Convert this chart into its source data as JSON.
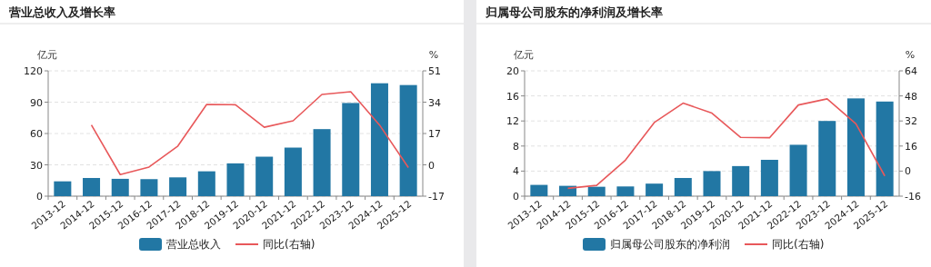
{
  "chart_data": [
    {
      "type": "bar",
      "title": "营业总收入及增长率",
      "ylabel": "亿元",
      "y2label": "%",
      "categories": [
        "2013-12",
        "2014-12",
        "2015-12",
        "2016-12",
        "2017-12",
        "2018-12",
        "2019-12",
        "2020-12",
        "2021-12",
        "2022-12",
        "2023-12",
        "2024-12",
        "2025-12"
      ],
      "series": [
        {
          "name": "营业总收入",
          "color": "#2277a4",
          "values": [
            14.2,
            17.4,
            16.6,
            16.3,
            18.0,
            23.8,
            31.4,
            37.8,
            46.5,
            64.2,
            89.2,
            108.1,
            106.4
          ]
        },
        {
          "name": "同比(右轴)",
          "type": "line",
          "axis": "y2",
          "color": "#e8585a",
          "values": [
            null,
            21.6,
            -5.3,
            -1.2,
            10.2,
            32.8,
            32.6,
            20.4,
            23.9,
            38.2,
            39.7,
            21.6,
            -1.5
          ]
        }
      ],
      "ylim": [
        0,
        120
      ],
      "yticks": [
        0,
        30,
        60,
        90,
        120
      ],
      "y2lim": [
        -17,
        51
      ],
      "y2ticks": [
        -17,
        0,
        17,
        34,
        51
      ],
      "grid": "y",
      "legend": "bottom"
    },
    {
      "type": "bar",
      "title": "归属母公司股东的净利润及增长率",
      "ylabel": "亿元",
      "y2label": "%",
      "categories": [
        "2013-12",
        "2014-12",
        "2015-12",
        "2016-12",
        "2017-12",
        "2018-12",
        "2019-12",
        "2020-12",
        "2021-12",
        "2022-12",
        "2023-12",
        "2024-12",
        "2025-12"
      ],
      "series": [
        {
          "name": "归属母公司股东的净利润",
          "color": "#2277a4",
          "values": [
            1.8,
            1.65,
            1.5,
            1.55,
            2.0,
            2.9,
            4.0,
            4.8,
            5.8,
            8.2,
            12.0,
            15.6,
            15.1
          ]
        },
        {
          "name": "同比(右轴)",
          "type": "line",
          "axis": "y2",
          "color": "#e8585a",
          "values": [
            null,
            -11.0,
            -9.1,
            7.0,
            31.0,
            43.4,
            37.0,
            21.5,
            21.3,
            42.2,
            46.1,
            30.2,
            -3.1
          ]
        }
      ],
      "ylim": [
        0,
        20
      ],
      "yticks": [
        0,
        4,
        8,
        12,
        16,
        20
      ],
      "y2lim": [
        -16,
        64
      ],
      "y2ticks": [
        -16,
        0,
        16,
        32,
        48,
        64
      ],
      "grid": "y",
      "legend": "bottom"
    }
  ]
}
